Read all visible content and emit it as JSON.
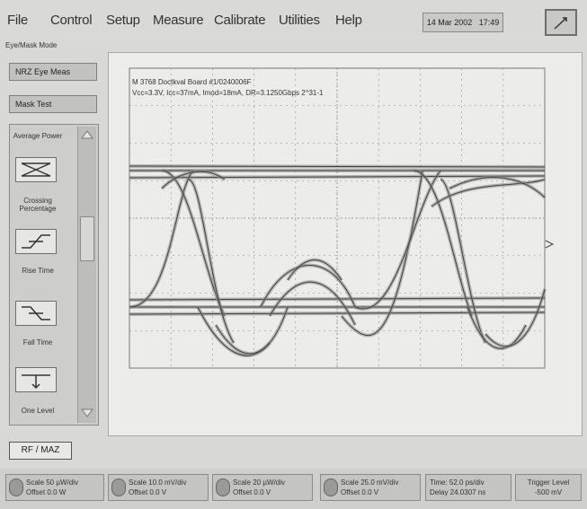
{
  "menu": {
    "items": [
      "File",
      "Control",
      "Setup",
      "Measure",
      "Calibrate",
      "Utilities",
      "Help"
    ],
    "date": "14 Mar 2002",
    "time": "17:49"
  },
  "left_panel": {
    "mode_title": "Eye/Mask Mode",
    "mode_button": "NRZ Eye Meas",
    "test_button": "Mask Test",
    "measurements": [
      "Average Power",
      "Crossing Percentage",
      "Rise Time",
      "Fall Time",
      "One Level"
    ]
  },
  "display": {
    "title_line1": "M 3768 Doctkval Board #1/0240006F",
    "title_line2": "Vcc=3.3V, Icc=37mA, Imod=18mA, DR=3.1250Gbps 2^31-1"
  },
  "ref_button": "RF / MAZ",
  "status": {
    "channels": [
      {
        "scale": "Scale 50 µW/div",
        "offset": "Offset 0.0 W"
      },
      {
        "scale": "Scale 10.0 mV/div",
        "offset": "Offset 0.0 V"
      },
      {
        "scale": "Scale 20 µW/div",
        "offset": "Offset 0.0 V"
      },
      {
        "scale": "Scale 25.0 mV/div",
        "offset": "Offset 0.0 V"
      }
    ],
    "time_label": "Time: 52.0 ps/div",
    "delay_label": "Delay 24.0307 ns",
    "trigger_label": "Trigger Level",
    "trigger_value": "-500 mV"
  }
}
